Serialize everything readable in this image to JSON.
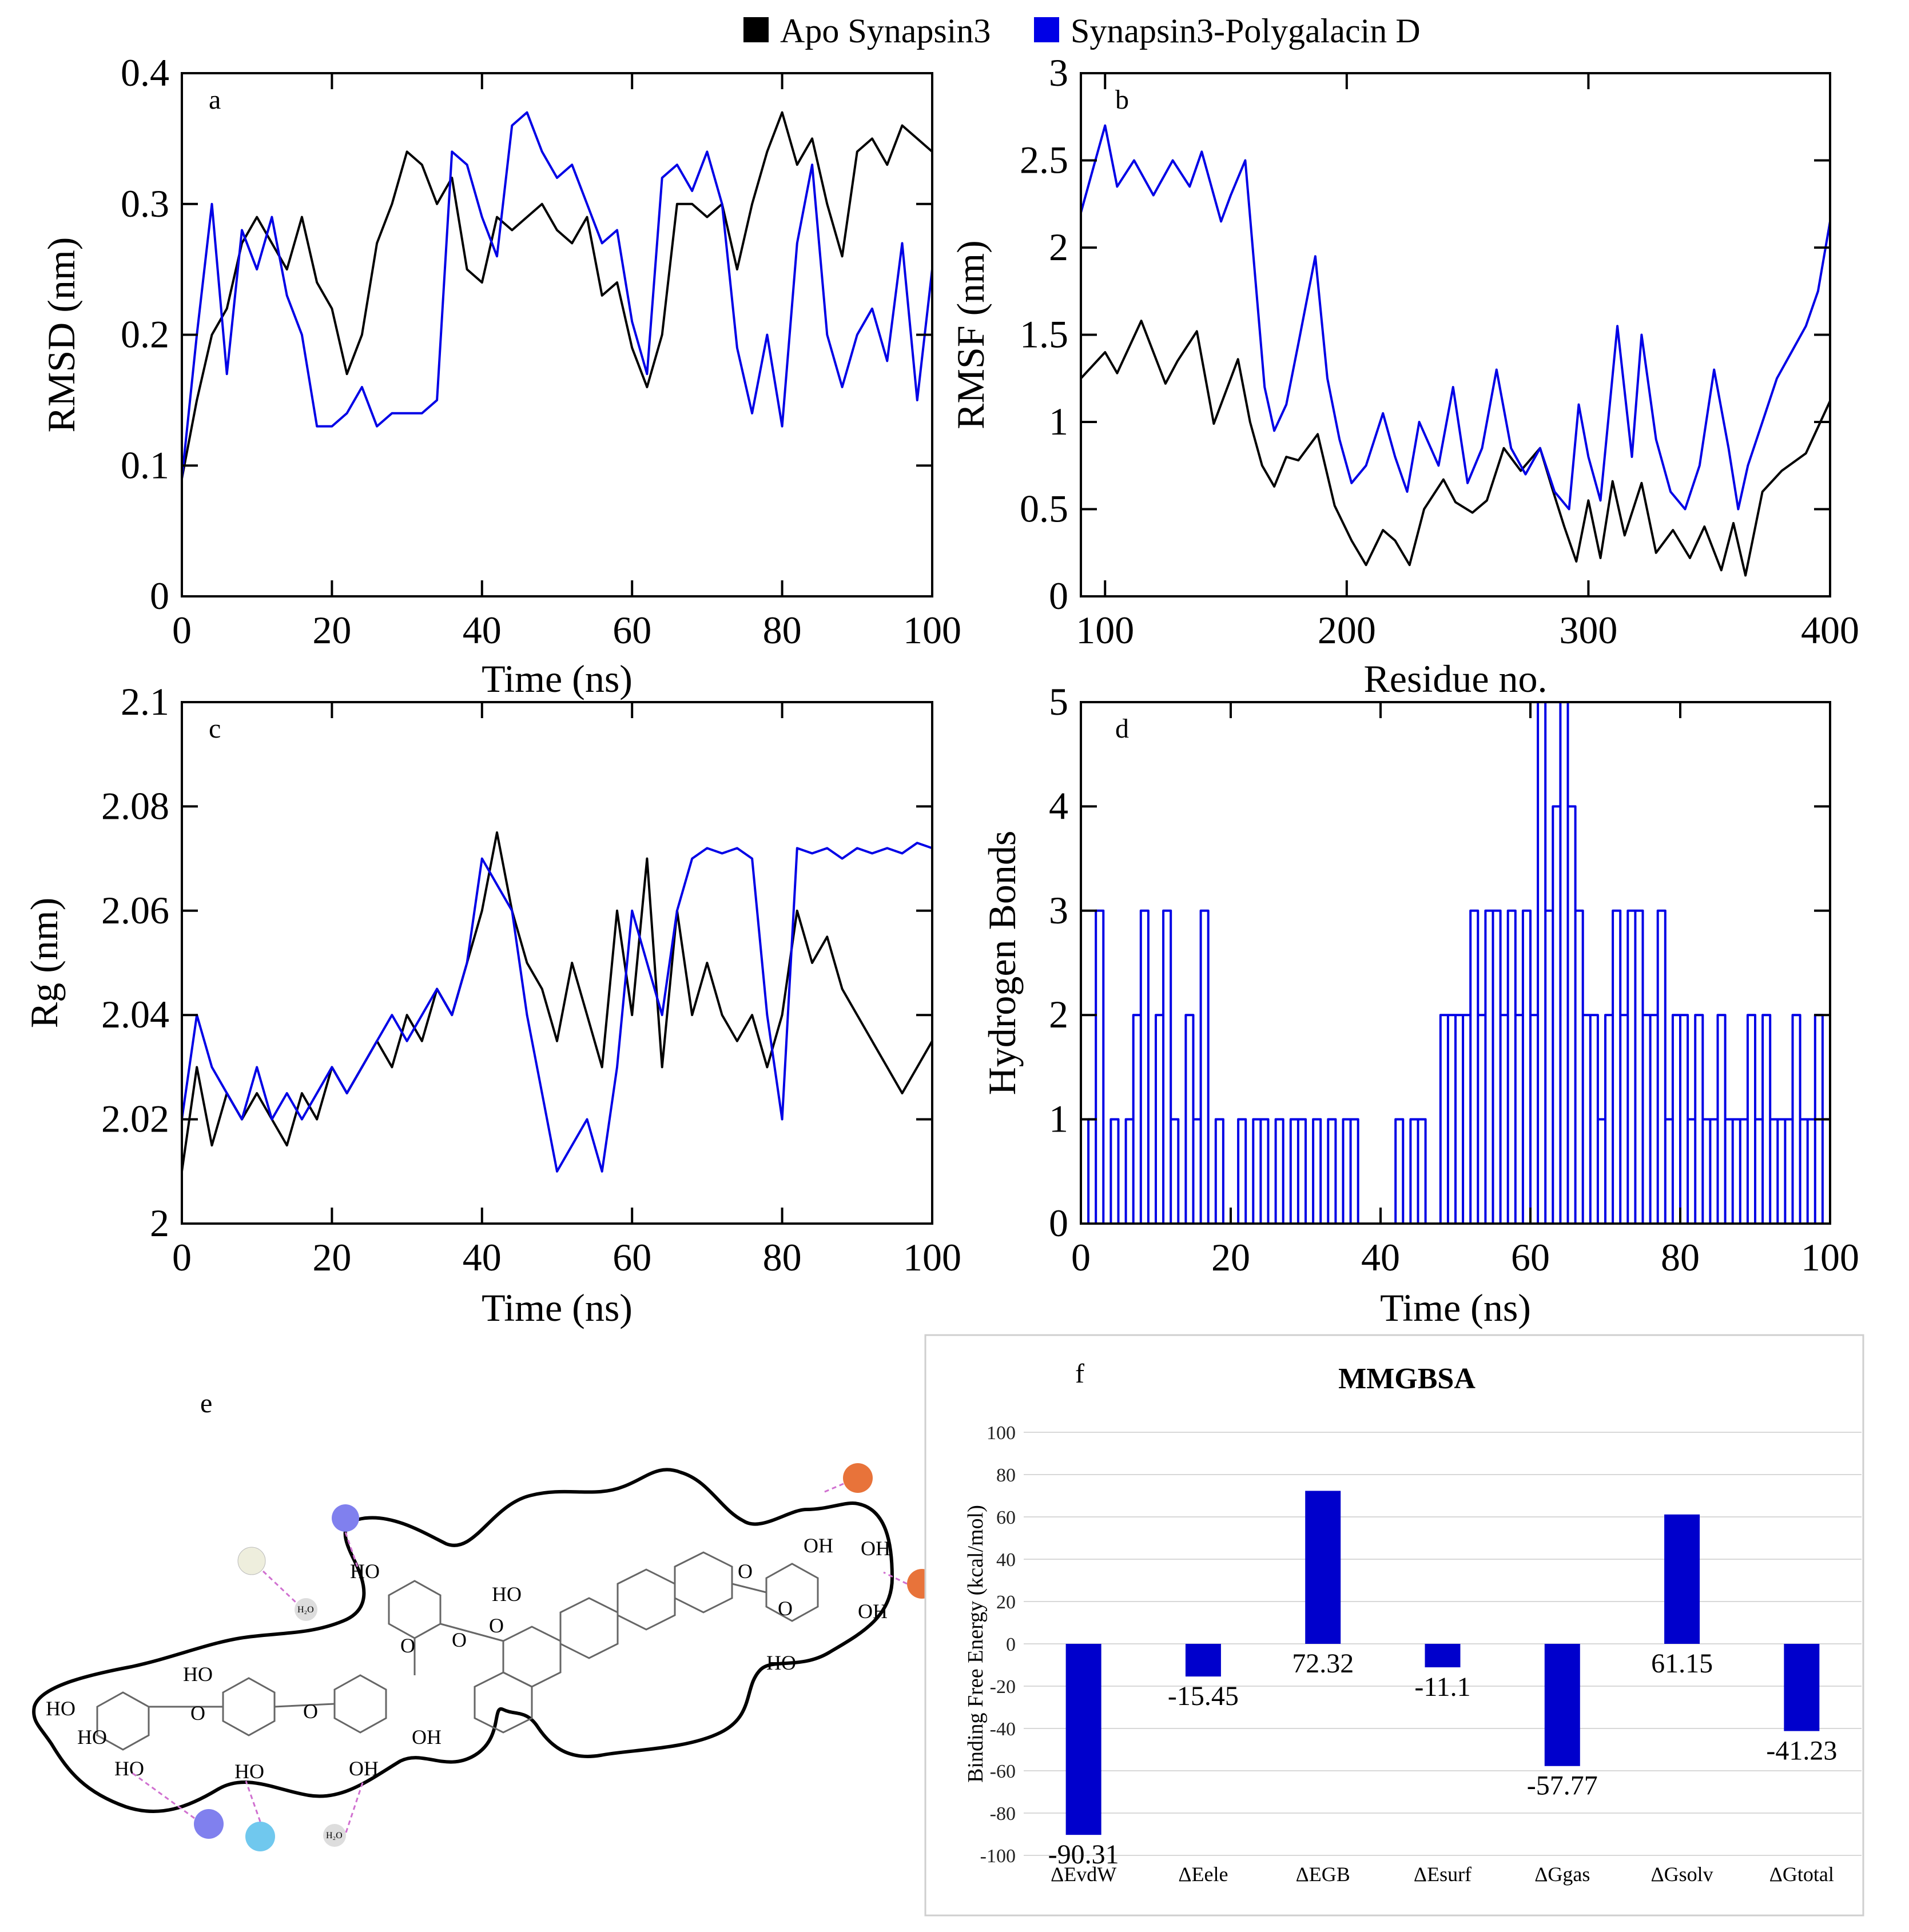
{
  "legend": {
    "apo_label": "Apo Synapsin3",
    "complex_label": "Synapsin3-Polygalacin D",
    "apo_color": "#000000",
    "complex_color": "#0000e6"
  },
  "chart_data": [
    {
      "id": "a",
      "type": "line",
      "panel_letter": "a",
      "xlabel": "Time (ns)",
      "ylabel": "RMSD (nm)",
      "xlim": [
        0,
        100
      ],
      "ylim": [
        0,
        0.4
      ],
      "xticks": [
        "0",
        "20",
        "40",
        "60",
        "80",
        "100"
      ],
      "yticks": [
        "0",
        "0.1",
        "0.2",
        "0.3",
        "0.4"
      ],
      "series": [
        {
          "name": "Apo Synapsin3",
          "color": "#000000",
          "x": [
            0,
            2,
            4,
            6,
            8,
            10,
            12,
            14,
            16,
            18,
            20,
            22,
            24,
            26,
            28,
            30,
            32,
            34,
            36,
            38,
            40,
            42,
            44,
            46,
            48,
            50,
            52,
            54,
            56,
            58,
            60,
            62,
            64,
            66,
            68,
            70,
            72,
            74,
            76,
            78,
            80,
            82,
            84,
            86,
            88,
            90,
            92,
            94,
            96,
            98,
            100
          ],
          "y": [
            0.09,
            0.15,
            0.2,
            0.22,
            0.27,
            0.29,
            0.27,
            0.25,
            0.29,
            0.24,
            0.22,
            0.17,
            0.2,
            0.27,
            0.3,
            0.34,
            0.33,
            0.3,
            0.32,
            0.25,
            0.24,
            0.29,
            0.28,
            0.29,
            0.3,
            0.28,
            0.27,
            0.29,
            0.23,
            0.24,
            0.19,
            0.16,
            0.2,
            0.3,
            0.3,
            0.29,
            0.3,
            0.25,
            0.3,
            0.34,
            0.37,
            0.33,
            0.35,
            0.3,
            0.26,
            0.34,
            0.35,
            0.33,
            0.36,
            0.35,
            0.34
          ]
        },
        {
          "name": "Synapsin3-Polygalacin D",
          "color": "#0000e6",
          "x": [
            0,
            2,
            4,
            6,
            8,
            10,
            12,
            14,
            16,
            18,
            20,
            22,
            24,
            26,
            28,
            30,
            32,
            34,
            36,
            38,
            40,
            42,
            44,
            46,
            48,
            50,
            52,
            54,
            56,
            58,
            60,
            62,
            64,
            66,
            68,
            70,
            72,
            74,
            76,
            78,
            80,
            82,
            84,
            86,
            88,
            90,
            92,
            94,
            96,
            98,
            100
          ],
          "y": [
            0.09,
            0.2,
            0.3,
            0.17,
            0.28,
            0.25,
            0.29,
            0.23,
            0.2,
            0.13,
            0.13,
            0.14,
            0.16,
            0.13,
            0.14,
            0.14,
            0.14,
            0.15,
            0.34,
            0.33,
            0.29,
            0.26,
            0.36,
            0.37,
            0.34,
            0.32,
            0.33,
            0.3,
            0.27,
            0.28,
            0.21,
            0.17,
            0.32,
            0.33,
            0.31,
            0.34,
            0.3,
            0.19,
            0.14,
            0.2,
            0.13,
            0.27,
            0.33,
            0.2,
            0.16,
            0.2,
            0.22,
            0.18,
            0.27,
            0.15,
            0.25
          ]
        }
      ]
    },
    {
      "id": "b",
      "type": "line",
      "panel_letter": "b",
      "xlabel": "Residue no.",
      "ylabel": "RMSF (nm)",
      "xlim": [
        90,
        400
      ],
      "ylim": [
        0,
        3
      ],
      "xticks": [
        "100",
        "200",
        "300",
        "400"
      ],
      "yticks": [
        "0",
        "0.5",
        "1",
        "1.5",
        "2",
        "2.5",
        "3"
      ],
      "series": [
        {
          "name": "Apo Synapsin3",
          "color": "#000000",
          "x": [
            90,
            100,
            105,
            115,
            125,
            130,
            138,
            145,
            155,
            160,
            165,
            170,
            175,
            180,
            188,
            195,
            202,
            208,
            215,
            220,
            226,
            232,
            240,
            245,
            252,
            258,
            265,
            272,
            280,
            285,
            290,
            295,
            300,
            305,
            310,
            315,
            322,
            328,
            335,
            342,
            348,
            355,
            360,
            365,
            372,
            380,
            390,
            400
          ],
          "y": [
            1.25,
            1.4,
            1.28,
            1.58,
            1.22,
            1.35,
            1.52,
            0.99,
            1.36,
            1.0,
            0.75,
            0.63,
            0.8,
            0.78,
            0.93,
            0.52,
            0.32,
            0.18,
            0.38,
            0.32,
            0.18,
            0.5,
            0.67,
            0.54,
            0.48,
            0.55,
            0.85,
            0.72,
            0.85,
            0.62,
            0.4,
            0.2,
            0.55,
            0.22,
            0.66,
            0.35,
            0.65,
            0.25,
            0.38,
            0.22,
            0.4,
            0.15,
            0.42,
            0.12,
            0.6,
            0.72,
            0.82,
            1.12
          ]
        },
        {
          "name": "Synapsin3-Polygalacin D",
          "color": "#0000e6",
          "x": [
            90,
            95,
            100,
            105,
            112,
            120,
            128,
            135,
            140,
            148,
            152,
            158,
            162,
            166,
            170,
            175,
            180,
            187,
            192,
            197,
            202,
            208,
            215,
            220,
            225,
            230,
            238,
            244,
            250,
            256,
            262,
            268,
            274,
            280,
            286,
            292,
            296,
            300,
            305,
            312,
            318,
            322,
            328,
            334,
            340,
            346,
            352,
            358,
            362,
            366,
            372,
            378,
            384,
            390,
            395,
            400
          ],
          "y": [
            2.2,
            2.45,
            2.7,
            2.35,
            2.5,
            2.3,
            2.5,
            2.35,
            2.55,
            2.15,
            2.3,
            2.5,
            1.85,
            1.2,
            0.95,
            1.1,
            1.45,
            1.95,
            1.25,
            0.9,
            0.65,
            0.75,
            1.05,
            0.8,
            0.6,
            1.0,
            0.75,
            1.2,
            0.65,
            0.85,
            1.3,
            0.85,
            0.7,
            0.85,
            0.6,
            0.5,
            1.1,
            0.8,
            0.55,
            1.55,
            0.8,
            1.5,
            0.9,
            0.6,
            0.5,
            0.75,
            1.3,
            0.85,
            0.5,
            0.75,
            1.0,
            1.25,
            1.4,
            1.55,
            1.75,
            2.15
          ]
        }
      ]
    },
    {
      "id": "c",
      "type": "line",
      "panel_letter": "c",
      "xlabel": "Time (ns)",
      "ylabel": "Rg (nm)",
      "xlim": [
        0,
        100
      ],
      "ylim": [
        2.0,
        2.1
      ],
      "xticks": [
        "0",
        "20",
        "40",
        "60",
        "80",
        "100"
      ],
      "yticks": [
        "2",
        "2.02",
        "2.04",
        "2.06",
        "2.08",
        "2.1"
      ],
      "series": [
        {
          "name": "Apo Synapsin3",
          "color": "#000000",
          "x": [
            0,
            2,
            4,
            6,
            8,
            10,
            12,
            14,
            16,
            18,
            20,
            22,
            24,
            26,
            28,
            30,
            32,
            34,
            36,
            38,
            40,
            42,
            44,
            46,
            48,
            50,
            52,
            54,
            56,
            58,
            60,
            62,
            64,
            66,
            68,
            70,
            72,
            74,
            76,
            78,
            80,
            82,
            84,
            86,
            88,
            90,
            92,
            94,
            96,
            98,
            100
          ],
          "y": [
            2.01,
            2.03,
            2.015,
            2.025,
            2.02,
            2.025,
            2.02,
            2.015,
            2.025,
            2.02,
            2.03,
            2.025,
            2.03,
            2.035,
            2.03,
            2.04,
            2.035,
            2.045,
            2.04,
            2.05,
            2.06,
            2.075,
            2.06,
            2.05,
            2.045,
            2.035,
            2.05,
            2.04,
            2.03,
            2.06,
            2.04,
            2.07,
            2.03,
            2.06,
            2.04,
            2.05,
            2.04,
            2.035,
            2.04,
            2.03,
            2.04,
            2.06,
            2.05,
            2.055,
            2.045,
            2.04,
            2.035,
            2.03,
            2.025,
            2.03,
            2.035
          ]
        },
        {
          "name": "Synapsin3-Polygalacin D",
          "color": "#0000e6",
          "x": [
            0,
            2,
            4,
            6,
            8,
            10,
            12,
            14,
            16,
            18,
            20,
            22,
            24,
            26,
            28,
            30,
            32,
            34,
            36,
            38,
            40,
            42,
            44,
            46,
            48,
            50,
            52,
            54,
            56,
            58,
            60,
            62,
            64,
            66,
            68,
            70,
            72,
            74,
            76,
            78,
            80,
            82,
            84,
            86,
            88,
            90,
            92,
            94,
            96,
            98,
            100
          ],
          "y": [
            2.02,
            2.04,
            2.03,
            2.025,
            2.02,
            2.03,
            2.02,
            2.025,
            2.02,
            2.025,
            2.03,
            2.025,
            2.03,
            2.035,
            2.04,
            2.035,
            2.04,
            2.045,
            2.04,
            2.05,
            2.07,
            2.065,
            2.06,
            2.04,
            2.025,
            2.01,
            2.015,
            2.02,
            2.01,
            2.03,
            2.06,
            2.05,
            2.04,
            2.06,
            2.07,
            2.072,
            2.071,
            2.072,
            2.07,
            2.04,
            2.02,
            2.072,
            2.071,
            2.072,
            2.07,
            2.072,
            2.071,
            2.072,
            2.071,
            2.073,
            2.072
          ]
        }
      ]
    },
    {
      "id": "d",
      "type": "line",
      "panel_letter": "d",
      "xlabel": "Time (ns)",
      "ylabel": "Hydrogen Bonds",
      "xlim": [
        0,
        100
      ],
      "ylim": [
        0,
        5
      ],
      "xticks": [
        "0",
        "20",
        "40",
        "60",
        "80",
        "100"
      ],
      "yticks": [
        "0",
        "1",
        "2",
        "3",
        "4",
        "5"
      ],
      "series": [
        {
          "name": "Synapsin3-Polygalacin D",
          "color": "#0000e6",
          "x": [
            0,
            1,
            2,
            3,
            4,
            5,
            6,
            7,
            8,
            9,
            10,
            11,
            12,
            13,
            14,
            15,
            16,
            17,
            18,
            19,
            20,
            21,
            22,
            23,
            24,
            25,
            26,
            27,
            28,
            29,
            30,
            31,
            32,
            33,
            34,
            35,
            36,
            37,
            38,
            39,
            40,
            41,
            42,
            43,
            44,
            45,
            46,
            47,
            48,
            49,
            50,
            51,
            52,
            53,
            54,
            55,
            56,
            57,
            58,
            59,
            60,
            61,
            62,
            63,
            64,
            65,
            66,
            67,
            68,
            69,
            70,
            71,
            72,
            73,
            74,
            75,
            76,
            77,
            78,
            79,
            80,
            81,
            82,
            83,
            84,
            85,
            86,
            87,
            88,
            89,
            90,
            91,
            92,
            93,
            94,
            95,
            96,
            97,
            98,
            99,
            100
          ],
          "y": [
            0,
            1,
            3,
            0,
            1,
            0,
            1,
            2,
            3,
            0,
            2,
            3,
            1,
            0,
            2,
            1,
            3,
            0,
            1,
            0,
            0,
            1,
            0,
            1,
            1,
            0,
            1,
            0,
            1,
            1,
            0,
            1,
            0,
            1,
            0,
            1,
            1,
            0,
            0,
            0,
            0,
            0,
            1,
            0,
            1,
            1,
            0,
            0,
            2,
            2,
            2,
            2,
            3,
            2,
            3,
            3,
            2,
            3,
            2,
            3,
            2,
            5,
            3,
            4,
            5,
            4,
            3,
            2,
            2,
            1,
            2,
            3,
            2,
            3,
            3,
            2,
            2,
            3,
            1,
            2,
            2,
            1,
            2,
            1,
            1,
            2,
            1,
            1,
            1,
            2,
            1,
            2,
            1,
            1,
            1,
            2,
            1,
            1,
            2,
            1,
            1
          ]
        }
      ]
    },
    {
      "id": "f",
      "type": "bar",
      "panel_letter": "f",
      "title": "MMGBSA",
      "ylabel": "Binding Free Energy (kcal/mol)",
      "ylim": [
        -100,
        100
      ],
      "yticks": [
        "-100",
        "-80",
        "-60",
        "-40",
        "-20",
        "0",
        "20",
        "40",
        "60",
        "80",
        "100"
      ],
      "categories": [
        "ΔEvdW",
        "ΔEele",
        "ΔEGB",
        "ΔEsurf",
        "ΔGgas",
        "ΔGsolv",
        "ΔGtotal"
      ],
      "values": [
        -90.31,
        -15.45,
        72.32,
        -11.1,
        -57.77,
        61.15,
        -41.23
      ],
      "value_labels": [
        "-90.31",
        "-15.45",
        "72.32",
        "-11.1",
        "-57.77",
        "61.15",
        "-41.23"
      ],
      "bar_color": "#0000cc",
      "grid": true
    }
  ],
  "panel_e": {
    "panel_letter": "e",
    "ligand_labels": [
      "HO",
      "HO",
      "HO",
      "HO",
      "HO",
      "HO",
      "OH",
      "OH",
      "HO",
      "OH",
      "OH",
      "OH",
      "HO",
      "O",
      "O",
      "O",
      "O",
      "O",
      "O",
      "O",
      "H₂O",
      "H₂O"
    ]
  }
}
